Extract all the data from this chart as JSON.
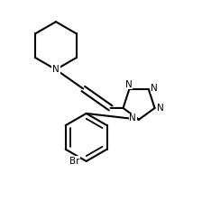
{
  "bg_color": "#ffffff",
  "line_color": "#000000",
  "lw": 1.5,
  "fs": 7.5,
  "figsize": [
    2.34,
    2.42
  ],
  "dpi": 100,
  "xlim": [
    0.0,
    1.0
  ],
  "ylim": [
    0.0,
    1.0
  ]
}
